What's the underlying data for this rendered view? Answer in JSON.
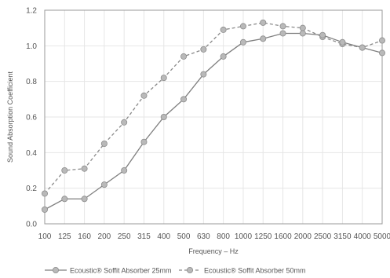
{
  "chart_data": {
    "type": "line",
    "xlabel": "Frequency – Hz",
    "ylabel": "Sound Absorption Coefficient",
    "categories": [
      "100",
      "125",
      "160",
      "200",
      "250",
      "315",
      "400",
      "500",
      "630",
      "800",
      "1000",
      "1250",
      "1600",
      "2000",
      "2500",
      "3150",
      "4000",
      "5000"
    ],
    "yticks": [
      "0.0",
      "0.2",
      "0.4",
      "0.6",
      "0.8",
      "1.0",
      "1.2"
    ],
    "ylim": [
      0,
      1.2
    ],
    "grid": true,
    "legend_position": "bottom",
    "series": [
      {
        "name": "Ecoustic® Soffit Absorber 25mm",
        "style": "solid",
        "color": "#7f7f7f",
        "values": [
          0.08,
          0.14,
          0.14,
          0.22,
          0.3,
          0.46,
          0.6,
          0.7,
          0.84,
          0.94,
          1.02,
          1.04,
          1.07,
          1.07,
          1.06,
          1.02,
          0.99,
          0.96
        ]
      },
      {
        "name": "Ecoustic® Soffit Absorber 50mm",
        "style": "dashed",
        "color": "#8a8a8a",
        "values": [
          0.17,
          0.3,
          0.31,
          0.45,
          0.57,
          0.72,
          0.82,
          0.94,
          0.98,
          1.09,
          1.11,
          1.13,
          1.11,
          1.1,
          1.05,
          1.01,
          0.99,
          1.03
        ]
      }
    ]
  }
}
